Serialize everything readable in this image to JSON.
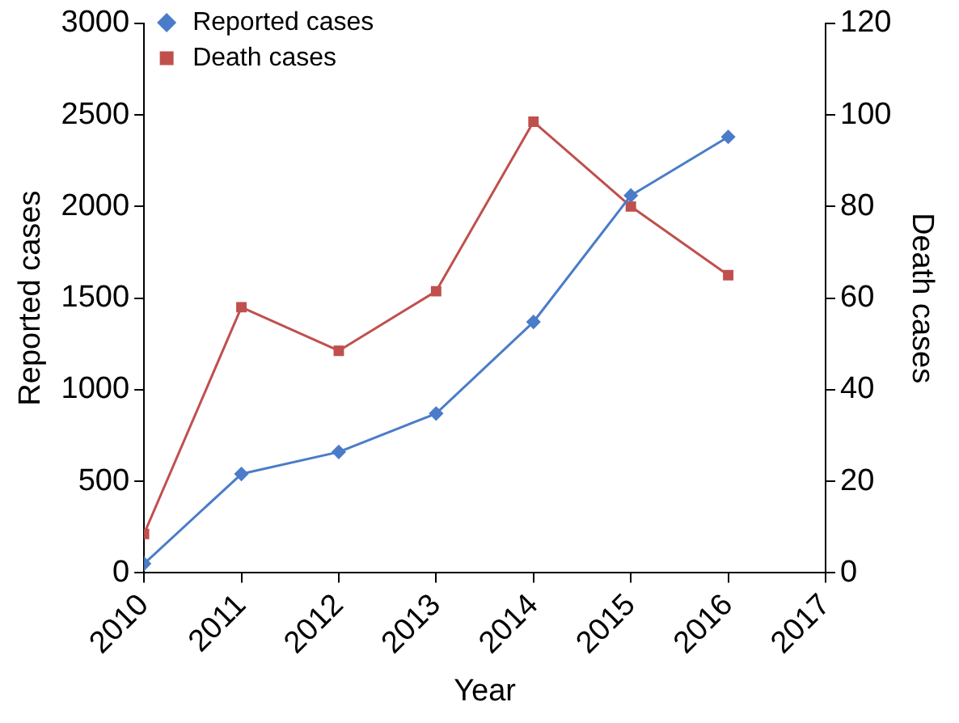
{
  "chart_data": {
    "type": "line",
    "xlabel": "Year",
    "ylabel": "Reported cases",
    "y2label": "Death cases",
    "xlim": [
      2010,
      2017
    ],
    "xticks": [
      2010,
      2011,
      2012,
      2013,
      2014,
      2015,
      2016,
      2017
    ],
    "ylim": [
      0,
      3000
    ],
    "yticks": [
      0,
      500,
      1000,
      1500,
      2000,
      2500,
      3000
    ],
    "y2lim": [
      0,
      120
    ],
    "y2ticks": [
      0,
      20,
      40,
      60,
      80,
      100,
      120
    ],
    "x": [
      2010,
      2011,
      2012,
      2013,
      2014,
      2015,
      2016
    ],
    "series": [
      {
        "name": "Reported cases",
        "color": "#4a7cc9",
        "marker": "diamond",
        "values": [
          50,
          540,
          660,
          870,
          1370,
          2060,
          2380
        ]
      },
      {
        "name": "Death cases",
        "color": "#c0504d",
        "marker": "square",
        "axis": "y2",
        "values": [
          8.5,
          58,
          48.5,
          61.5,
          98.5,
          80,
          65
        ]
      }
    ],
    "grid": false,
    "legend": "top left",
    "line_style": "solid"
  }
}
